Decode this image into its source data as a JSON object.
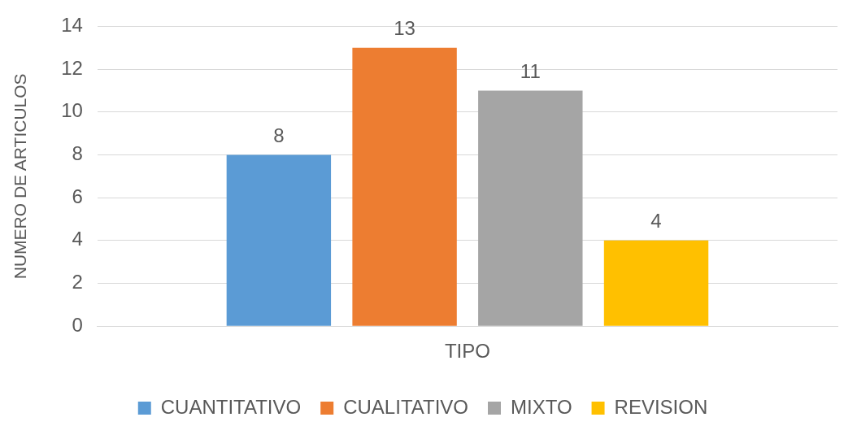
{
  "chart_data": {
    "type": "bar",
    "categories": [
      "TIPO"
    ],
    "ylabel": "NUMERO DE ARTICULOS",
    "ylim": [
      0,
      14
    ],
    "yticks": [
      0,
      2,
      4,
      6,
      8,
      10,
      12,
      14
    ],
    "grid": "y",
    "legend": "bottom",
    "data_labels": true,
    "series": [
      {
        "name": "CUANTITATIVO",
        "color": "#5b9bd5",
        "values": [
          8
        ]
      },
      {
        "name": "CUALITATIVO",
        "color": "#ed7d31",
        "values": [
          13
        ]
      },
      {
        "name": "MIXTO",
        "color": "#a5a5a5",
        "values": [
          11
        ]
      },
      {
        "name": "REVISION",
        "color": "#ffc000",
        "values": [
          4
        ]
      }
    ]
  }
}
